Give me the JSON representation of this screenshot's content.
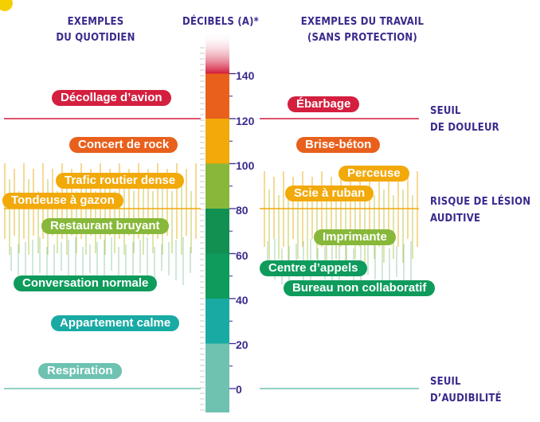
{
  "headers": {
    "left_line1": "EXEMPLES",
    "left_line2": "DU QUOTIDIEN",
    "center": "DÉCIBELS (A)*",
    "right_line1": "EXEMPLES DU TRAVAIL",
    "right_line2": "(SANS PROTECTION)"
  },
  "scale": {
    "ticks": [
      "0",
      "20",
      "40",
      "60",
      "80",
      "100",
      "120",
      "140"
    ],
    "band_colors": [
      "#6dc2b0",
      "#19aaa4",
      "#0e9b5c",
      "#119052",
      "#87b83a",
      "#f2a90a",
      "#e8601c",
      "#d41f3f"
    ]
  },
  "thresholds": {
    "pain": {
      "line1": "SEUIL",
      "line2": "DE DOULEUR",
      "color": "#d41f3f"
    },
    "damage": {
      "line1": "RISQUE DE LÉSION",
      "line2": "AUDITIVE",
      "color": "#f2a90a"
    },
    "audibility": {
      "line1": "SEUIL",
      "line2": "D’AUDIBILITÉ",
      "color": "#6dc2b0"
    }
  },
  "everyday": [
    {
      "label": "Décollage d’avion",
      "color": "#d41f3f"
    },
    {
      "label": "Concert de rock",
      "color": "#e8601c"
    },
    {
      "label": "Trafic routier dense",
      "color": "#f2a90a"
    },
    {
      "label": "Tondeuse à gazon",
      "color": "#f2a90a"
    },
    {
      "label": "Restaurant bruyant",
      "color": "#87b83a"
    },
    {
      "label": "Conversation normale",
      "color": "#0e9b5c"
    },
    {
      "label": "Appartement calme",
      "color": "#19aaa4"
    },
    {
      "label": "Respiration",
      "color": "#6dc2b0"
    }
  ],
  "work": [
    {
      "label": "Ébarbage",
      "color": "#d41f3f"
    },
    {
      "label": "Brise-béton",
      "color": "#e8601c"
    },
    {
      "label": "Perceuse",
      "color": "#f2a90a"
    },
    {
      "label": "Scie à ruban",
      "color": "#f2a90a"
    },
    {
      "label": "Imprimante",
      "color": "#87b83a"
    },
    {
      "label": "Centre d’appels",
      "color": "#0e9b5c"
    },
    {
      "label": "Bureau non collaboratif",
      "color": "#0e9b5c"
    }
  ],
  "accent_dot_color": "#f5d000"
}
